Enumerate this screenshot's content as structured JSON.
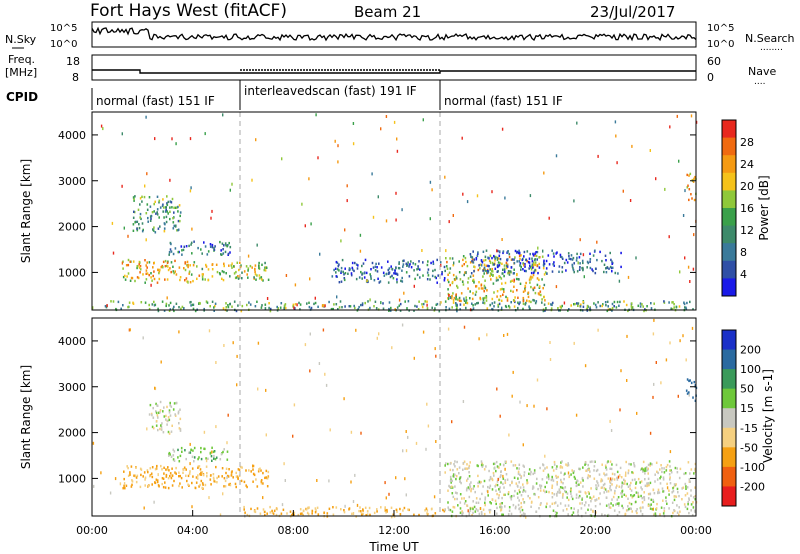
{
  "header": {
    "station_title": "Fort Hays West (fitACF)",
    "beam": "Beam 21",
    "date": "23/Jul/2017"
  },
  "noise_panel": {
    "left_label": "N.Sky",
    "right_label": "N.Search",
    "right_key": "........",
    "ticks_left": [
      "10^5",
      "10^0"
    ],
    "ticks_right": [
      "10^5",
      "10^0"
    ]
  },
  "freq_panel": {
    "left_label_1": "Freq.",
    "left_label_2": "[MHz]",
    "right_label": "Nave",
    "right_key": "....",
    "ticks_left": [
      "18",
      "8"
    ],
    "ticks_right": [
      "60",
      "0"
    ]
  },
  "cpid_panel": {
    "label": "CPID",
    "segments": [
      {
        "text": "normal (fast) 151 IF",
        "start_hr": 0,
        "end_hr": 6
      },
      {
        "text": "interleavedscan (fast) 191 IF",
        "start_hr": 6,
        "end_hr": 14
      },
      {
        "text": "normal (fast) 151 IF",
        "start_hr": 14,
        "end_hr": 24
      }
    ]
  },
  "chart_data": [
    {
      "type": "heatmap",
      "name": "power",
      "ylabel": "Slant Range [km]",
      "yticks": [
        "1000",
        "2000",
        "3000",
        "4000"
      ],
      "ylim": [
        180,
        4500
      ],
      "xlim": [
        0,
        24
      ],
      "colorbar": {
        "label": "Power [dB]",
        "ticks": [
          "4",
          "8",
          "12",
          "16",
          "20",
          "24",
          "28"
        ]
      },
      "regions": [
        {
          "x": [
            1.2,
            4.0
          ],
          "range": [
            800,
            1300
          ],
          "value": 20
        },
        {
          "x": [
            4.0,
            7.0
          ],
          "range": [
            850,
            1250
          ],
          "value": 18
        },
        {
          "x": [
            1.6,
            3.5
          ],
          "range": [
            1900,
            2700
          ],
          "value": 12
        },
        {
          "x": [
            3.0,
            5.5
          ],
          "range": [
            1400,
            1700
          ],
          "value": 8
        },
        {
          "x": [
            0.5,
            24
          ],
          "range": [
            180,
            400
          ],
          "value": 12
        },
        {
          "x": [
            9.5,
            14
          ],
          "range": [
            800,
            1300
          ],
          "value": 6
        },
        {
          "x": [
            14,
            18
          ],
          "range": [
            400,
            1400
          ],
          "value": 18
        },
        {
          "x": [
            15,
            21
          ],
          "range": [
            1000,
            1500
          ],
          "value": 5
        },
        {
          "x": [
            23.6,
            24
          ],
          "range": [
            2600,
            3200
          ],
          "value": 20
        }
      ],
      "dashed_lines_hr": [
        6,
        14
      ]
    },
    {
      "type": "heatmap",
      "name": "velocity",
      "ylabel": "Slant Range [km]",
      "xlabel": "Time UT",
      "yticks": [
        "1000",
        "2000",
        "3000",
        "4000"
      ],
      "ylim": [
        180,
        4500
      ],
      "xlim": [
        0,
        24
      ],
      "xticks": [
        "00:00",
        "04:00",
        "08:00",
        "12:00",
        "16:00",
        "20:00",
        "00:00"
      ],
      "colorbar": {
        "label": "Velocity [m s-1]",
        "ticks": [
          "200",
          "100",
          "50",
          "15",
          "-15",
          "-50",
          "-100",
          "-200"
        ]
      },
      "regions": [
        {
          "x": [
            1.2,
            7.0
          ],
          "range": [
            800,
            1300
          ],
          "value": -60
        },
        {
          "x": [
            2.2,
            3.5
          ],
          "range": [
            2000,
            2700
          ],
          "value": 0
        },
        {
          "x": [
            3.0,
            5.5
          ],
          "range": [
            1400,
            1700
          ],
          "value": 30
        },
        {
          "x": [
            6.0,
            14
          ],
          "range": [
            180,
            400
          ],
          "value": -50
        },
        {
          "x": [
            14,
            24
          ],
          "range": [
            200,
            1400
          ],
          "value": 0
        },
        {
          "x": [
            23.6,
            24
          ],
          "range": [
            2700,
            3200
          ],
          "value": 150
        }
      ],
      "dashed_lines_hr": [
        6,
        14
      ]
    }
  ]
}
